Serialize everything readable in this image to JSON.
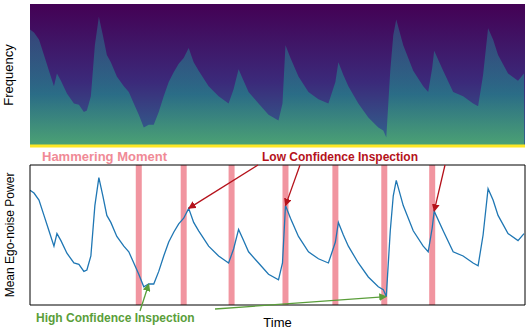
{
  "chart_data": [
    {
      "type": "spectrogram",
      "ylabel": "Frequency",
      "tick_labels": false
    },
    {
      "type": "line",
      "xlabel": "Time",
      "ylabel": "Mean Ego-noise Power",
      "tick_labels": false,
      "xlim": [
        0,
        496
      ],
      "ylim": [
        0,
        100
      ],
      "color": "#1f77b4",
      "x": [
        0,
        4,
        9,
        14,
        19,
        24,
        27,
        31,
        37,
        44,
        49,
        54,
        57,
        61,
        65,
        69,
        73,
        77,
        81,
        87,
        94,
        99,
        104,
        109,
        114,
        119,
        124,
        129,
        134,
        139,
        144,
        149,
        154,
        159,
        164,
        169,
        179,
        189,
        199,
        204,
        209,
        214,
        219,
        229,
        239,
        249,
        253,
        256,
        261,
        269,
        279,
        289,
        299,
        306,
        309,
        314,
        319,
        329,
        339,
        349,
        354,
        357,
        361,
        364,
        367,
        374,
        384,
        394,
        399,
        403,
        405,
        414,
        424,
        434,
        444,
        449,
        454,
        459,
        464,
        469,
        479,
        489,
        495
      ],
      "values": [
        82,
        80,
        75,
        64,
        53,
        42,
        51,
        46,
        37,
        30,
        29,
        24,
        25,
        35,
        71,
        91,
        78,
        64,
        59,
        49,
        42,
        38,
        30,
        22,
        13,
        15,
        15,
        24,
        35,
        45,
        52,
        58,
        62,
        69,
        59,
        53,
        42,
        35,
        30,
        40,
        54,
        46,
        38,
        30,
        22,
        18,
        30,
        71,
        62,
        49,
        38,
        33,
        30,
        45,
        59,
        50,
        42,
        30,
        20,
        13,
        11,
        6,
        53,
        78,
        89,
        71,
        53,
        42,
        38,
        55,
        67,
        53,
        38,
        35,
        30,
        28,
        50,
        83,
        75,
        64,
        51,
        46,
        51
      ],
      "hammering_moments": {
        "label": "Hammering Moment",
        "color": "#f08a96",
        "x": [
          109,
          154,
          202,
          256,
          306,
          355,
          403
        ]
      },
      "annotations": [
        {
          "text": "Low Confidence Inspection",
          "color": "#b5121b",
          "points": [
            [
              159,
              69
            ],
            [
              256,
              71
            ],
            [
              405,
              67
            ]
          ]
        },
        {
          "text": "High Confidence Inspection",
          "color": "#5a9e3a",
          "points": [
            [
              119,
              15
            ],
            [
              357,
              6
            ]
          ]
        }
      ]
    }
  ]
}
